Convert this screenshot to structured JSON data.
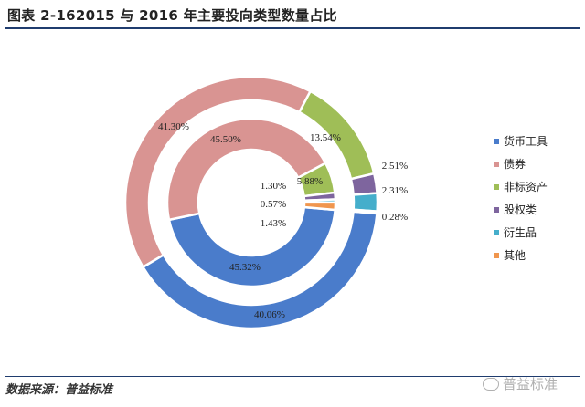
{
  "header": {
    "title": "图表 2-162015 与 2016 年主要投向类型数量占比"
  },
  "footer": {
    "source": "数据来源：普益标准",
    "watermark": "普益标准"
  },
  "chart_data": {
    "type": "donut",
    "categories": [
      "货币工具",
      "债券",
      "非标资产",
      "股权类",
      "衍生品",
      "其他"
    ],
    "colors": [
      "#4a7ccb",
      "#d99492",
      "#9fbe57",
      "#7e659e",
      "#45aecb",
      "#f0964e"
    ],
    "series": [
      {
        "ring": "inner",
        "values": [
          45.32,
          45.5,
          5.88,
          1.3,
          0.57,
          1.43
        ]
      },
      {
        "ring": "outer",
        "values": [
          40.06,
          41.3,
          13.54,
          2.51,
          2.31,
          0.28
        ]
      }
    ],
    "labels": {
      "inner": [
        "45.32%",
        "45.50%",
        "5.88%",
        "1.30%",
        "0.57%",
        "1.43%"
      ],
      "outer": [
        "40.06%",
        "41.30%",
        "13.54%",
        "2.51%",
        "2.31%",
        "0.28%"
      ]
    },
    "legend_position": "right"
  }
}
